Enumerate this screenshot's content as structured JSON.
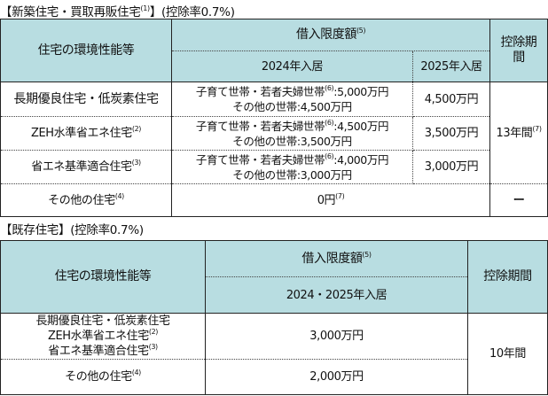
{
  "new": {
    "title": "【新築住宅・買取再販住宅",
    "title_sup": "(1)",
    "title_tail": "】(控除率0.7%)",
    "header": {
      "performance": "住宅の環境性能等",
      "limit": "借入限度額",
      "limit_sup": "(5)",
      "y2024": "2024年入居",
      "y2025": "2025年入居",
      "period": "控除期間"
    },
    "rows": [
      {
        "name": "長期優良住宅・低炭素住宅",
        "sup": "",
        "line1": "子育て世帯・若者夫婦世帯",
        "line1_sup": "(6)",
        "line1_val": ":5,000万円",
        "line2": "その他の世帯:4,500万円",
        "y2025": "4,500万円"
      },
      {
        "name": "ZEH水準省エネ住宅",
        "sup": "(2)",
        "line1": "子育て世帯・若者夫婦世帯",
        "line1_sup": "(6)",
        "line1_val": ":4,500万円",
        "line2": "その他の世帯:3,500万円",
        "y2025": "3,500万円"
      },
      {
        "name": "省エネ基準適合住宅",
        "sup": "(3)",
        "line1": "子育て世帯・若者夫婦世帯",
        "line1_sup": "(6)",
        "line1_val": ":4,000万円",
        "line2": "その他の世帯:3,000万円",
        "y2025": "3,000万円"
      }
    ],
    "period_value": "13年間",
    "period_sup": "(7)",
    "other": {
      "name": "その他の住宅",
      "sup": "(4)",
      "value": "0円",
      "value_sup": "(7)",
      "period": "ー"
    }
  },
  "existing": {
    "title": "【既存住宅】(控除率0.7%)",
    "header": {
      "performance": "住宅の環境性能等",
      "limit": "借入限度額",
      "limit_sup": "(5)",
      "years": "2024・2025年入居",
      "period": "控除期間"
    },
    "row1": {
      "name1": "長期優良住宅・低炭素住宅",
      "name2": "ZEH水準省エネ住宅",
      "sup2": "(2)",
      "name3": "省エネ基準適合住宅",
      "sup3": "(3)",
      "value": "3,000万円"
    },
    "row2": {
      "name": "その他の住宅",
      "sup": "(4)",
      "value": "2,000万円"
    },
    "period_value": "10年間"
  }
}
